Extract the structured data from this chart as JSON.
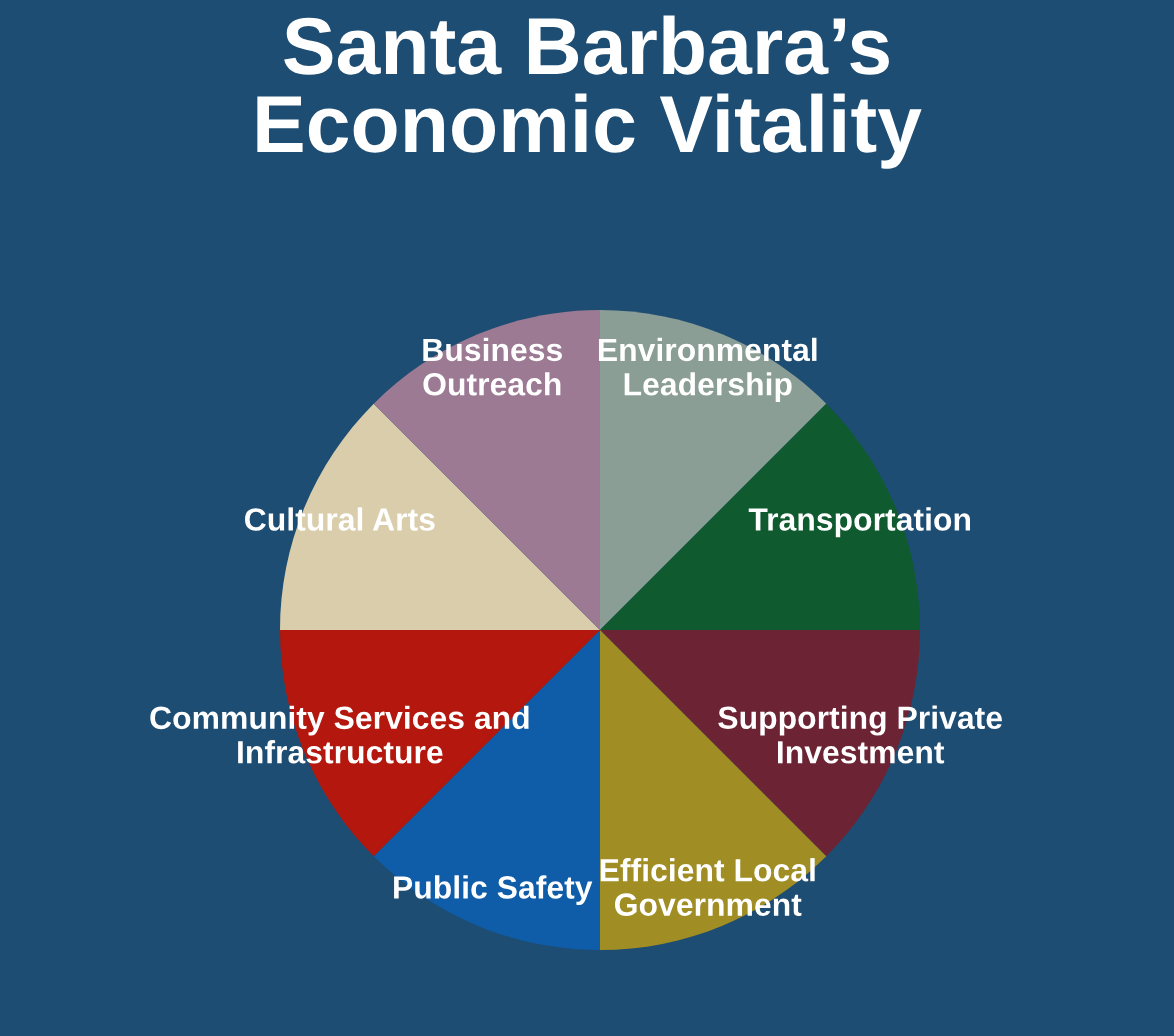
{
  "chart_data": {
    "type": "pie",
    "title": "Santa Barbara’s\nEconomic Vitality",
    "categories": [
      "Environmental\nLeadership",
      "Transportation",
      "Supporting Private\nInvestment",
      "Efficient Local\nGovernment",
      "Public Safety",
      "Community Services and\nInfrastructure",
      "Cultural Arts",
      "Business\nOutreach"
    ],
    "values": [
      12.5,
      12.5,
      12.5,
      12.5,
      12.5,
      12.5,
      12.5,
      12.5
    ],
    "colors": [
      "#8a9e96",
      "#0f5a2e",
      "#6c2434",
      "#a08e25",
      "#0f5ca8",
      "#b3170d",
      "#d9cdab",
      "#9c7a93"
    ],
    "legend": false
  }
}
